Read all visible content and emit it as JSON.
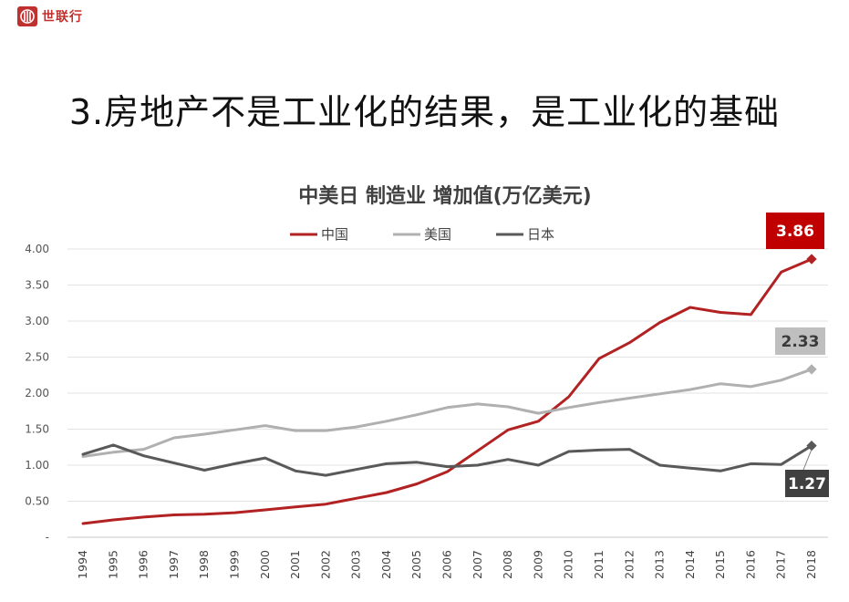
{
  "brand": {
    "name": "世联行",
    "color": "#c0302e"
  },
  "headline": "3.房地产不是工业化的结果，是工业化的基础",
  "chart_data": {
    "type": "line",
    "title": "中美日 制造业 增加值(万亿美元)",
    "xlabel": "",
    "ylabel": "",
    "ylim": [
      0,
      4
    ],
    "yticks": [
      "-",
      "0.50",
      "1.00",
      "1.50",
      "2.00",
      "2.50",
      "3.00",
      "3.50",
      "4.00"
    ],
    "grid": true,
    "legend_position": "top",
    "x": [
      "1994",
      "1995",
      "1996",
      "1997",
      "1998",
      "1999",
      "2000",
      "2001",
      "2002",
      "2003",
      "2004",
      "2005",
      "2006",
      "2007",
      "2008",
      "2009",
      "2010",
      "2011",
      "2012",
      "2013",
      "2014",
      "2015",
      "2016",
      "2017",
      "2018"
    ],
    "series": [
      {
        "name": "中国",
        "color": "#b22222",
        "values": [
          0.19,
          0.24,
          0.28,
          0.31,
          0.32,
          0.34,
          0.38,
          0.42,
          0.46,
          0.54,
          0.62,
          0.74,
          0.91,
          1.2,
          1.49,
          1.61,
          1.95,
          2.48,
          2.7,
          2.98,
          3.19,
          3.12,
          3.09,
          3.68,
          3.86
        ]
      },
      {
        "name": "美国",
        "color": "#b0b0b0",
        "values": [
          1.12,
          1.18,
          1.22,
          1.38,
          1.43,
          1.49,
          1.55,
          1.48,
          1.48,
          1.53,
          1.61,
          1.7,
          1.8,
          1.85,
          1.81,
          1.72,
          1.8,
          1.87,
          1.93,
          1.99,
          2.05,
          2.13,
          2.09,
          2.18,
          2.33
        ]
      },
      {
        "name": "日本",
        "color": "#595959",
        "values": [
          1.15,
          1.28,
          1.13,
          1.03,
          0.93,
          1.02,
          1.1,
          0.92,
          0.86,
          0.94,
          1.02,
          1.04,
          0.98,
          1.0,
          1.08,
          1.0,
          1.19,
          1.21,
          1.22,
          1.0,
          0.96,
          0.92,
          1.02,
          1.01,
          1.27
        ]
      }
    ],
    "annotations": [
      {
        "series": "中国",
        "label": "3.86",
        "bg": "#c00000",
        "fg": "#ffffff"
      },
      {
        "series": "美国",
        "label": "2.33",
        "bg": "#bfbfbf",
        "fg": "#3a3a3a"
      },
      {
        "series": "日本",
        "label": "1.27",
        "bg": "#404040",
        "fg": "#ffffff"
      }
    ]
  }
}
